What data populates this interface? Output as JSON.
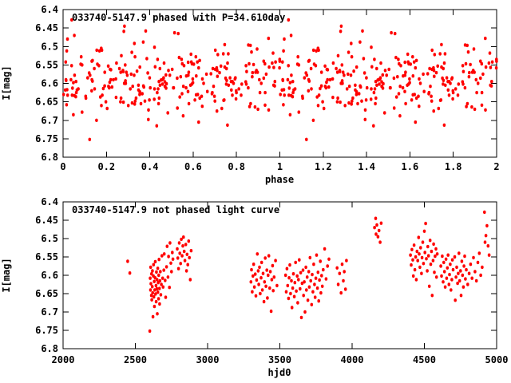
{
  "figure": {
    "background": "#ffffff",
    "foreground": "#000000",
    "point_color": "#ff0000",
    "description": "Two-panel gnuplot light-curve figure for variable star 033740-5147.9"
  },
  "chart_data": [
    {
      "type": "scatter",
      "panel": "top",
      "title": "033740-5147.9 phased with P=34.610day",
      "xlabel": "phase",
      "ylabel": "I[mag]",
      "xlim": [
        0,
        2
      ],
      "ylim": [
        6.4,
        6.8
      ],
      "y_axis_inverted": true,
      "grid": false,
      "legend": "none",
      "period_days": 34.61,
      "points_source": "chart_data.1.points folded at period_days; every measurement is plotted twice, at phase and phase+1",
      "x_ticks": [
        0,
        0.2,
        0.4,
        0.6,
        0.8,
        1,
        1.2,
        1.4,
        1.6,
        1.8,
        2
      ],
      "x_tick_labels": [
        "0",
        "0.2",
        "0.4",
        "0.6",
        "0.8",
        "1",
        "1.2",
        "1.4",
        "1.6",
        "1.8",
        "2"
      ],
      "y_ticks": [
        6.4,
        6.45,
        6.5,
        6.55,
        6.6,
        6.65,
        6.7,
        6.75,
        6.8
      ],
      "y_tick_labels": [
        "6.4",
        "6.45",
        "6.5",
        "6.55",
        "6.6",
        "6.65",
        "6.7",
        "6.75",
        "6.8"
      ]
    },
    {
      "type": "scatter",
      "panel": "bottom",
      "title": "033740-5147.9 not phased light curve",
      "xlabel": "hjd0",
      "ylabel": "I[mag]",
      "xlim": [
        2000,
        5000
      ],
      "ylim": [
        6.4,
        6.8
      ],
      "y_axis_inverted": true,
      "grid": false,
      "legend": "none",
      "x_ticks": [
        2000,
        2500,
        3000,
        3500,
        4000,
        4500,
        5000
      ],
      "x_tick_labels": [
        "2000",
        "2500",
        "3000",
        "3500",
        "4000",
        "4500",
        "5000"
      ],
      "y_ticks": [
        6.4,
        6.45,
        6.5,
        6.55,
        6.6,
        6.65,
        6.7,
        6.75,
        6.8
      ],
      "y_tick_labels": [
        "6.4",
        "6.45",
        "6.5",
        "6.55",
        "6.6",
        "6.65",
        "6.7",
        "6.75",
        "6.8"
      ],
      "points": [
        [
          2447,
          6.562
        ],
        [
          2462,
          6.594
        ],
        [
          2600,
          6.752
        ],
        [
          2603,
          6.608
        ],
        [
          2605,
          6.64
        ],
        [
          2606,
          6.578
        ],
        [
          2608,
          6.623
        ],
        [
          2611,
          6.655
        ],
        [
          2612,
          6.596
        ],
        [
          2614,
          6.667
        ],
        [
          2617,
          6.631
        ],
        [
          2618,
          6.588
        ],
        [
          2620,
          6.648
        ],
        [
          2622,
          6.713
        ],
        [
          2625,
          6.602
        ],
        [
          2626,
          6.571
        ],
        [
          2628,
          6.659
        ],
        [
          2631,
          6.617
        ],
        [
          2632,
          6.685
        ],
        [
          2634,
          6.64
        ],
        [
          2637,
          6.607
        ],
        [
          2638,
          6.563
        ],
        [
          2640,
          6.651
        ],
        [
          2643,
          6.628
        ],
        [
          2644,
          6.672
        ],
        [
          2646,
          6.591
        ],
        [
          2649,
          6.637
        ],
        [
          2650,
          6.612
        ],
        [
          2652,
          6.705
        ],
        [
          2655,
          6.581
        ],
        [
          2656,
          6.646
        ],
        [
          2658,
          6.62
        ],
        [
          2661,
          6.664
        ],
        [
          2662,
          6.6
        ],
        [
          2664,
          6.557
        ],
        [
          2667,
          6.636
        ],
        [
          2668,
          6.678
        ],
        [
          2670,
          6.615
        ],
        [
          2673,
          6.59
        ],
        [
          2676,
          6.653
        ],
        [
          2680,
          6.625
        ],
        [
          2684,
          6.547
        ],
        [
          2689,
          6.608
        ],
        [
          2692,
          6.632
        ],
        [
          2697,
          6.586
        ],
        [
          2700,
          6.542
        ],
        [
          2706,
          6.614
        ],
        [
          2710,
          6.66
        ],
        [
          2716,
          6.577
        ],
        [
          2720,
          6.521
        ],
        [
          2726,
          6.605
        ],
        [
          2730,
          6.549
        ],
        [
          2736,
          6.633
        ],
        [
          2740,
          6.512
        ],
        [
          2746,
          6.567
        ],
        [
          2750,
          6.59
        ],
        [
          2756,
          6.538
        ],
        [
          2760,
          6.556
        ],
        [
          2790,
          6.528
        ],
        [
          2794,
          6.553
        ],
        [
          2799,
          6.582
        ],
        [
          2804,
          6.512
        ],
        [
          2808,
          6.54
        ],
        [
          2813,
          6.568
        ],
        [
          2818,
          6.502
        ],
        [
          2824,
          6.547
        ],
        [
          2829,
          6.52
        ],
        [
          2833,
          6.496
        ],
        [
          2838,
          6.535
        ],
        [
          2843,
          6.56
        ],
        [
          2849,
          6.516
        ],
        [
          2854,
          6.588
        ],
        [
          2858,
          6.543
        ],
        [
          2863,
          6.571
        ],
        [
          2869,
          6.507
        ],
        [
          2874,
          6.552
        ],
        [
          2880,
          6.612
        ],
        [
          2886,
          6.533
        ],
        [
          3300,
          6.618
        ],
        [
          3304,
          6.585
        ],
        [
          3309,
          6.645
        ],
        [
          3314,
          6.602
        ],
        [
          3319,
          6.57
        ],
        [
          3324,
          6.632
        ],
        [
          3330,
          6.597
        ],
        [
          3334,
          6.656
        ],
        [
          3339,
          6.613
        ],
        [
          3344,
          6.542
        ],
        [
          3350,
          6.588
        ],
        [
          3354,
          6.625
        ],
        [
          3359,
          6.578
        ],
        [
          3364,
          6.65
        ],
        [
          3370,
          6.607
        ],
        [
          3374,
          6.565
        ],
        [
          3379,
          6.64
        ],
        [
          3384,
          6.595
        ],
        [
          3390,
          6.672
        ],
        [
          3394,
          6.618
        ],
        [
          3399,
          6.553
        ],
        [
          3404,
          6.63
        ],
        [
          3410,
          6.586
        ],
        [
          3414,
          6.662
        ],
        [
          3419,
          6.6
        ],
        [
          3424,
          6.547
        ],
        [
          3430,
          6.635
        ],
        [
          3434,
          6.59
        ],
        [
          3440,
          6.698
        ],
        [
          3444,
          6.612
        ],
        [
          3450,
          6.574
        ],
        [
          3454,
          6.642
        ],
        [
          3460,
          6.605
        ],
        [
          3470,
          6.56
        ],
        [
          3480,
          6.628
        ],
        [
          3540,
          6.6
        ],
        [
          3544,
          6.645
        ],
        [
          3549,
          6.582
        ],
        [
          3554,
          6.628
        ],
        [
          3560,
          6.663
        ],
        [
          3564,
          6.607
        ],
        [
          3569,
          6.572
        ],
        [
          3574,
          6.65
        ],
        [
          3580,
          6.615
        ],
        [
          3584,
          6.688
        ],
        [
          3589,
          6.635
        ],
        [
          3594,
          6.596
        ],
        [
          3600,
          6.658
        ],
        [
          3604,
          6.62
        ],
        [
          3609,
          6.565
        ],
        [
          3614,
          6.643
        ],
        [
          3620,
          6.602
        ],
        [
          3624,
          6.675
        ],
        [
          3629,
          6.612
        ],
        [
          3634,
          6.558
        ],
        [
          3640,
          6.637
        ],
        [
          3644,
          6.593
        ],
        [
          3649,
          6.715
        ],
        [
          3654,
          6.622
        ],
        [
          3660,
          6.586
        ],
        [
          3664,
          6.655
        ],
        [
          3669,
          6.618
        ],
        [
          3674,
          6.7
        ],
        [
          3680,
          6.578
        ],
        [
          3684,
          6.64
        ],
        [
          3689,
          6.605
        ],
        [
          3694,
          6.668
        ],
        [
          3700,
          6.59
        ],
        [
          3704,
          6.632
        ],
        [
          3709,
          6.552
        ],
        [
          3714,
          6.615
        ],
        [
          3720,
          6.68
        ],
        [
          3724,
          6.598
        ],
        [
          3729,
          6.645
        ],
        [
          3734,
          6.57
        ],
        [
          3740,
          6.625
        ],
        [
          3744,
          6.66
        ],
        [
          3749,
          6.608
        ],
        [
          3754,
          6.545
        ],
        [
          3760,
          6.635
        ],
        [
          3764,
          6.592
        ],
        [
          3769,
          6.67
        ],
        [
          3774,
          6.613
        ],
        [
          3780,
          6.562
        ],
        [
          3784,
          6.648
        ],
        [
          3789,
          6.601
        ],
        [
          3794,
          6.63
        ],
        [
          3800,
          6.585
        ],
        [
          3810,
          6.528
        ],
        [
          3820,
          6.61
        ],
        [
          3830,
          6.575
        ],
        [
          3840,
          6.556
        ],
        [
          3896,
          6.58
        ],
        [
          3904,
          6.625
        ],
        [
          3913,
          6.595
        ],
        [
          3924,
          6.648
        ],
        [
          3931,
          6.57
        ],
        [
          3939,
          6.615
        ],
        [
          3946,
          6.59
        ],
        [
          3954,
          6.638
        ],
        [
          3961,
          6.56
        ],
        [
          4155,
          6.47
        ],
        [
          4163,
          6.445
        ],
        [
          4166,
          6.488
        ],
        [
          4171,
          6.463
        ],
        [
          4179,
          6.495
        ],
        [
          4186,
          6.478
        ],
        [
          4194,
          6.51
        ],
        [
          4201,
          6.458
        ],
        [
          4404,
          6.545
        ],
        [
          4409,
          6.572
        ],
        [
          4414,
          6.53
        ],
        [
          4420,
          6.558
        ],
        [
          4424,
          6.602
        ],
        [
          4429,
          6.518
        ],
        [
          4434,
          6.585
        ],
        [
          4440,
          6.55
        ],
        [
          4444,
          6.612
        ],
        [
          4449,
          6.535
        ],
        [
          4454,
          6.56
        ],
        [
          4460,
          6.497
        ],
        [
          4464,
          6.542
        ],
        [
          4469,
          6.578
        ],
        [
          4474,
          6.525
        ],
        [
          4480,
          6.595
        ],
        [
          4484,
          6.552
        ],
        [
          4489,
          6.51
        ],
        [
          4494,
          6.568
        ],
        [
          4500,
          6.48
        ],
        [
          4504,
          6.538
        ],
        [
          4509,
          6.459
        ],
        [
          4514,
          6.555
        ],
        [
          4520,
          6.588
        ],
        [
          4524,
          6.522
        ],
        [
          4529,
          6.547
        ],
        [
          4534,
          6.63
        ],
        [
          4540,
          6.505
        ],
        [
          4544,
          6.57
        ],
        [
          4549,
          6.535
        ],
        [
          4554,
          6.655
        ],
        [
          4560,
          6.56
        ],
        [
          4564,
          6.515
        ],
        [
          4569,
          6.592
        ],
        [
          4574,
          6.548
        ],
        [
          4580,
          6.528
        ],
        [
          4584,
          6.605
        ],
        [
          4589,
          6.542
        ],
        [
          4614,
          6.575
        ],
        [
          4619,
          6.602
        ],
        [
          4624,
          6.548
        ],
        [
          4630,
          6.618
        ],
        [
          4634,
          6.565
        ],
        [
          4639,
          6.59
        ],
        [
          4644,
          6.632
        ],
        [
          4650,
          6.556
        ],
        [
          4654,
          6.608
        ],
        [
          4659,
          6.58
        ],
        [
          4664,
          6.545
        ],
        [
          4670,
          6.625
        ],
        [
          4674,
          6.598
        ],
        [
          4679,
          6.57
        ],
        [
          4684,
          6.64
        ],
        [
          4690,
          6.612
        ],
        [
          4694,
          6.558
        ],
        [
          4699,
          6.585
        ],
        [
          4710,
          6.55
        ],
        [
          4714,
          6.668
        ],
        [
          4719,
          6.605
        ],
        [
          4724,
          6.578
        ],
        [
          4730,
          6.622
        ],
        [
          4734,
          6.595
        ],
        [
          4739,
          6.54
        ],
        [
          4744,
          6.615
        ],
        [
          4750,
          6.588
        ],
        [
          4754,
          6.655
        ],
        [
          4759,
          6.562
        ],
        [
          4764,
          6.6
        ],
        [
          4770,
          6.632
        ],
        [
          4774,
          6.575
        ],
        [
          4779,
          6.548
        ],
        [
          4784,
          6.61
        ],
        [
          4790,
          6.585
        ],
        [
          4800,
          6.625
        ],
        [
          4810,
          6.595
        ],
        [
          4820,
          6.57
        ],
        [
          4830,
          6.608
        ],
        [
          4840,
          6.552
        ],
        [
          4850,
          6.59
        ],
        [
          4860,
          6.615
        ],
        [
          4870,
          6.565
        ],
        [
          4880,
          6.54
        ],
        [
          4890,
          6.6
        ],
        [
          4900,
          6.578
        ],
        [
          4916,
          6.428
        ],
        [
          4920,
          6.51
        ],
        [
          4926,
          6.492
        ],
        [
          4933,
          6.465
        ],
        [
          4941,
          6.52
        ],
        [
          4948,
          6.545
        ]
      ]
    }
  ]
}
